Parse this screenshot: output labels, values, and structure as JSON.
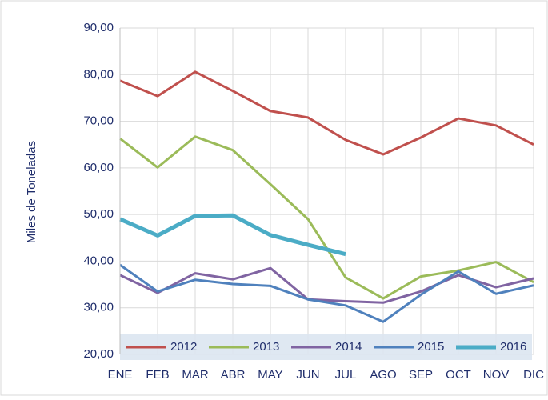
{
  "chart_data": {
    "type": "line",
    "y_label": "Miles de Toneladas",
    "categories": [
      "ENE",
      "FEB",
      "MAR",
      "ABR",
      "MAY",
      "JUN",
      "JUL",
      "AGO",
      "SEP",
      "OCT",
      "NOV",
      "DIC"
    ],
    "series": [
      {
        "name": "2012",
        "color": "#c0504d",
        "values": [
          78.7,
          75.4,
          80.6,
          76.5,
          72.2,
          70.8,
          66.0,
          62.9,
          66.5,
          70.6,
          69.1,
          65.0
        ]
      },
      {
        "name": "2013",
        "color": "#9bbb59",
        "values": [
          66.3,
          60.1,
          66.7,
          63.8,
          56.5,
          49.0,
          36.5,
          32.0,
          36.7,
          38.0,
          39.8,
          35.5
        ]
      },
      {
        "name": "2014",
        "color": "#8064a2",
        "values": [
          37.0,
          33.2,
          37.4,
          36.1,
          38.5,
          31.8,
          31.4,
          31.1,
          33.5,
          37.0,
          34.4,
          36.3
        ]
      },
      {
        "name": "2015",
        "color": "#4f81bd",
        "values": [
          39.2,
          33.5,
          36.0,
          35.1,
          34.7,
          31.8,
          30.5,
          27.0,
          32.8,
          37.8,
          33.0,
          34.8
        ]
      },
      {
        "name": "2016",
        "color": "#4bacc6",
        "values": [
          49.0,
          45.5,
          49.7,
          49.8,
          45.6,
          43.5,
          41.5,
          null,
          null,
          null,
          null,
          null
        ]
      }
    ],
    "ylim": [
      20,
      90
    ],
    "yticks": [
      {
        "value": 20,
        "label": "20,00"
      },
      {
        "value": 30,
        "label": "30,00"
      },
      {
        "value": 40,
        "label": "40,00"
      },
      {
        "value": 50,
        "label": "50,00"
      },
      {
        "value": 60,
        "label": "60,00"
      },
      {
        "value": 70,
        "label": "70,00"
      },
      {
        "value": 80,
        "label": "80,00"
      },
      {
        "value": 90,
        "label": "90,00"
      }
    ],
    "grid": true,
    "legend": "bottom"
  }
}
